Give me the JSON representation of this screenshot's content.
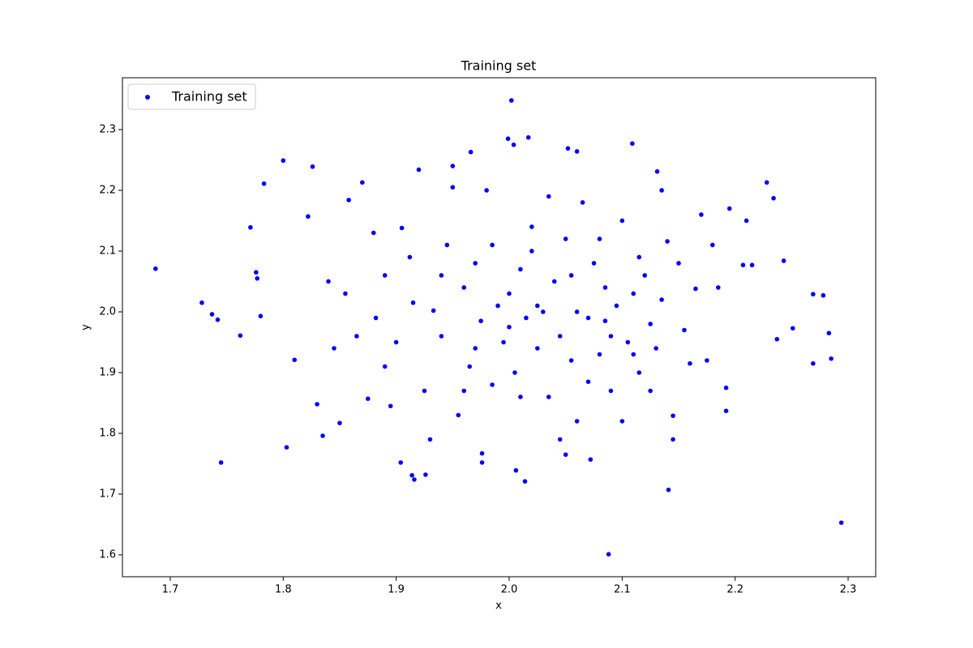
{
  "chart_data": {
    "type": "scatter",
    "title": "Training set",
    "x_label": "x",
    "y_label": "y",
    "xlim": [
      1.6577,
      2.3244
    ],
    "ylim": [
      1.564,
      2.3853
    ],
    "xticks": [
      1.7,
      1.8,
      1.9,
      {
        "value": 2,
        "label": "2.0"
      },
      2.1,
      2.2,
      2.3
    ],
    "yticks": [
      1.6,
      1.7,
      1.8,
      1.9,
      {
        "value": 2,
        "label": "2.0"
      },
      2.1,
      2.2,
      2.3
    ],
    "legend": "upper left",
    "series": [
      {
        "name": "Training set",
        "color": "#0000ff",
        "x": [
          1.687,
          1.728,
          1.737,
          1.742,
          1.745,
          1.762,
          1.771,
          1.776,
          1.777,
          1.78,
          1.783,
          1.8,
          1.803,
          1.826,
          2.002,
          1.999,
          2.004,
          2.017,
          1.966,
          2.052,
          2.06,
          2.109,
          2.131,
          2.088,
          2.294,
          2.141,
          2.228,
          2.234,
          2.243,
          2.283,
          2.285,
          2.278,
          2.269,
          2.269,
          2.251,
          1.914,
          1.916,
          1.926,
          1.904,
          2.006,
          2.014,
          1.976,
          1.976,
          2.072,
          2.05,
          2.145,
          2.192,
          2.192,
          1.81,
          1.822,
          1.83,
          1.835,
          1.85,
          1.858,
          1.87,
          1.875,
          1.882,
          1.89,
          1.9,
          1.905,
          1.912,
          1.92,
          1.925,
          1.933,
          1.94,
          1.945,
          1.95,
          1.955,
          1.96,
          1.965,
          1.97,
          1.975,
          1.98,
          1.985,
          1.99,
          1.995,
          2.0,
          2.005,
          2.01,
          2.015,
          2.02,
          2.025,
          2.03,
          2.035,
          2.04,
          2.045,
          2.05,
          2.055,
          2.06,
          2.065,
          2.07,
          2.075,
          2.08,
          2.085,
          2.09,
          2.095,
          2.1,
          2.105,
          2.11,
          2.115,
          2.12,
          2.125,
          2.13,
          2.135,
          2.14,
          2.145,
          2.15,
          2.155,
          2.16,
          2.165,
          2.17,
          2.175,
          2.18,
          2.185,
          2.195,
          2.207,
          2.21,
          2.215,
          2.237,
          1.84,
          1.845,
          1.855,
          1.865,
          1.88,
          1.895,
          1.915,
          1.93,
          1.95,
          1.96,
          1.985,
          2.0,
          2.01,
          2.02,
          2.035,
          2.045,
          2.06,
          2.07,
          2.08,
          2.09,
          2.1,
          2.115,
          2.125,
          2.135,
          1.89,
          1.94,
          1.97,
          2.025,
          2.055,
          2.085,
          2.11
        ],
        "values": [
          2.071,
          2.015,
          1.996,
          1.987,
          1.752,
          1.961,
          2.139,
          2.065,
          2.055,
          1.993,
          2.211,
          2.249,
          1.777,
          2.239,
          2.348,
          2.285,
          2.275,
          2.287,
          2.263,
          2.269,
          2.264,
          2.277,
          2.231,
          1.601,
          1.653,
          1.707,
          2.213,
          2.187,
          2.084,
          1.965,
          1.923,
          2.027,
          2.029,
          1.915,
          1.973,
          1.731,
          1.724,
          1.732,
          1.752,
          1.739,
          1.721,
          1.767,
          1.752,
          1.757,
          1.765,
          1.829,
          1.837,
          1.875,
          1.921,
          2.157,
          1.848,
          1.796,
          1.817,
          2.184,
          2.213,
          1.857,
          1.99,
          2.06,
          1.95,
          2.138,
          2.09,
          2.234,
          1.87,
          2.002,
          1.96,
          2.11,
          2.205,
          1.83,
          2.04,
          1.91,
          2.08,
          1.985,
          2.2,
          1.88,
          2.01,
          1.95,
          2.03,
          1.9,
          2.07,
          1.99,
          2.14,
          1.94,
          2.0,
          1.86,
          2.05,
          1.96,
          2.12,
          1.92,
          1.82,
          2.18,
          1.99,
          2.08,
          1.93,
          2.04,
          1.87,
          2.01,
          2.15,
          1.95,
          2.03,
          1.9,
          2.06,
          1.98,
          1.94,
          2.02,
          2.116,
          1.79,
          2.08,
          1.97,
          1.915,
          2.038,
          2.16,
          1.92,
          2.11,
          2.04,
          2.17,
          2.077,
          2.15,
          2.077,
          1.955,
          2.05,
          1.94,
          2.03,
          1.96,
          2.13,
          1.845,
          2.015,
          1.79,
          2.24,
          1.87,
          2.11,
          1.975,
          1.86,
          2.1,
          2.19,
          1.79,
          2.0,
          1.885,
          2.12,
          1.96,
          1.82,
          2.09,
          1.87,
          2.2,
          1.91,
          2.06,
          1.94,
          2.01,
          2.06,
          1.985,
          1.93
        ]
      }
    ]
  }
}
